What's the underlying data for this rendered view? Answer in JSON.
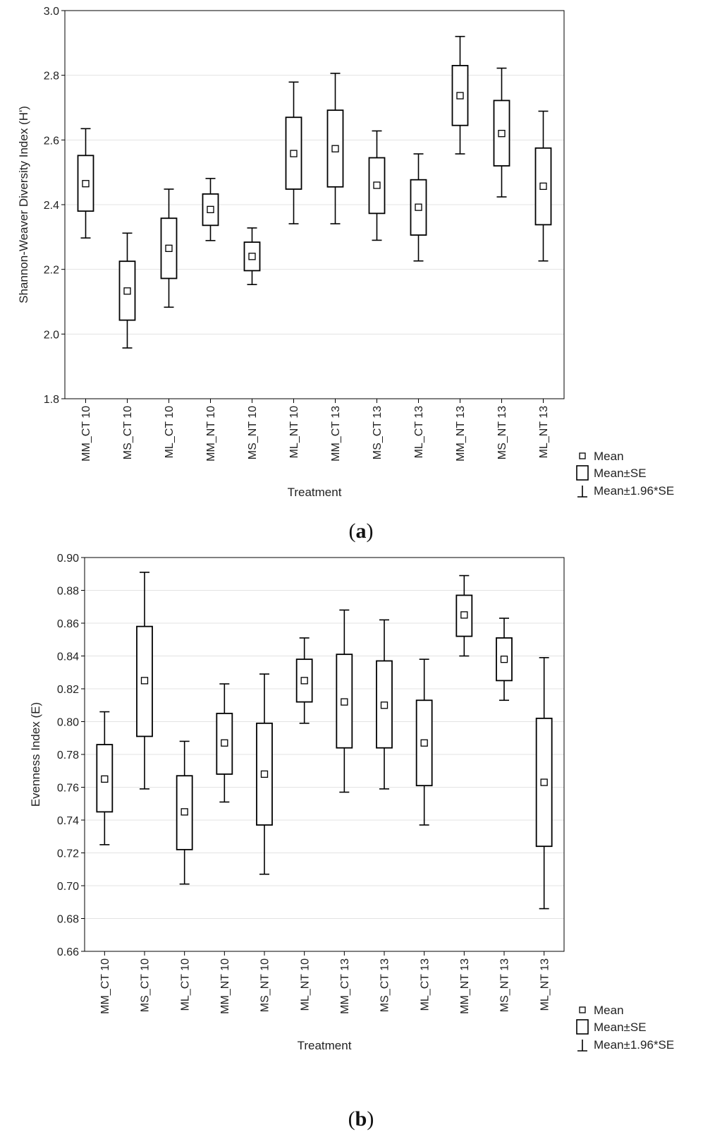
{
  "chart_data": [
    {
      "type": "box",
      "panel_label": "(a)",
      "panel_label_parts": [
        "(",
        "a",
        ")"
      ],
      "xlabel": "Treatment",
      "ylabel": "Shannon-Weaver Diversity Index (H')",
      "ylim": [
        1.8,
        3.0
      ],
      "yticks": [
        1.8,
        2.0,
        2.2,
        2.4,
        2.6,
        2.8,
        3.0
      ],
      "ytick_labels": [
        "1.8",
        "2.0",
        "2.2",
        "2.4",
        "2.6",
        "2.8",
        "3.0"
      ],
      "grid": true,
      "categories": [
        "MM_CT 10",
        "MS_CT 10",
        "ML_CT 10",
        "MM_NT 10",
        "MS_NT 10",
        "ML_NT 10",
        "MM_CT 13",
        "MS_CT 13",
        "ML_CT 13",
        "MM_NT 13",
        "MS_NT 13",
        "ML_NT 13"
      ],
      "series": [
        {
          "name": "Mean",
          "values": [
            2.465,
            2.133,
            2.265,
            2.385,
            2.24,
            2.558,
            2.573,
            2.46,
            2.392,
            2.737,
            2.62,
            2.457
          ]
        },
        {
          "name": "Mean-SE",
          "values": [
            2.38,
            2.043,
            2.172,
            2.336,
            2.196,
            2.448,
            2.455,
            2.373,
            2.306,
            2.645,
            2.52,
            2.338
          ]
        },
        {
          "name": "Mean+SE",
          "values": [
            2.552,
            2.225,
            2.358,
            2.433,
            2.284,
            2.67,
            2.692,
            2.545,
            2.477,
            2.83,
            2.722,
            2.575
          ]
        },
        {
          "name": "Mean-1.96*SE",
          "values": [
            2.297,
            1.957,
            2.083,
            2.289,
            2.153,
            2.341,
            2.341,
            2.29,
            2.226,
            2.557,
            2.424,
            2.226
          ]
        },
        {
          "name": "Mean+1.96*SE",
          "values": [
            2.635,
            2.312,
            2.448,
            2.481,
            2.328,
            2.779,
            2.806,
            2.628,
            2.557,
            2.92,
            2.822,
            2.689
          ]
        }
      ],
      "legend": [
        "Mean",
        "Mean±SE",
        "Mean±1.96*SE"
      ],
      "legend_position": "bottom-right outside"
    },
    {
      "type": "box",
      "panel_label": "(b)",
      "panel_label_parts": [
        "(",
        "b",
        ")"
      ],
      "xlabel": "Treatment",
      "ylabel": "Evenness Index (E)",
      "ylim": [
        0.66,
        0.9
      ],
      "yticks": [
        0.66,
        0.68,
        0.7,
        0.72,
        0.74,
        0.76,
        0.78,
        0.8,
        0.82,
        0.84,
        0.86,
        0.88,
        0.9
      ],
      "ytick_labels": [
        "0.66",
        "0.68",
        "0.70",
        "0.72",
        "0.74",
        "0.76",
        "0.78",
        "0.80",
        "0.82",
        "0.84",
        "0.86",
        "0.88",
        "0.90"
      ],
      "grid": true,
      "categories": [
        "MM_CT 10",
        "MS_CT 10",
        "ML_CT 10",
        "MM_NT 10",
        "MS_NT 10",
        "ML_NT 10",
        "MM_CT 13",
        "MS_CT 13",
        "ML_CT 13",
        "MM_NT 13",
        "MS_NT 13",
        "ML_NT 13"
      ],
      "series": [
        {
          "name": "Mean",
          "values": [
            0.765,
            0.825,
            0.745,
            0.787,
            0.768,
            0.825,
            0.812,
            0.81,
            0.787,
            0.865,
            0.838,
            0.763
          ]
        },
        {
          "name": "Mean-SE",
          "values": [
            0.745,
            0.791,
            0.722,
            0.768,
            0.737,
            0.812,
            0.784,
            0.784,
            0.761,
            0.852,
            0.825,
            0.724
          ]
        },
        {
          "name": "Mean+SE",
          "values": [
            0.786,
            0.858,
            0.767,
            0.805,
            0.799,
            0.838,
            0.841,
            0.837,
            0.813,
            0.877,
            0.851,
            0.802
          ]
        },
        {
          "name": "Mean-1.96*SE",
          "values": [
            0.725,
            0.759,
            0.701,
            0.751,
            0.707,
            0.799,
            0.757,
            0.759,
            0.737,
            0.84,
            0.813,
            0.686
          ]
        },
        {
          "name": "Mean+1.96*SE",
          "values": [
            0.806,
            0.891,
            0.788,
            0.823,
            0.829,
            0.851,
            0.868,
            0.862,
            0.838,
            0.889,
            0.863,
            0.839
          ]
        }
      ],
      "legend": [
        "Mean",
        "Mean±SE",
        "Mean±1.96*SE"
      ],
      "legend_position": "bottom-right outside"
    }
  ]
}
